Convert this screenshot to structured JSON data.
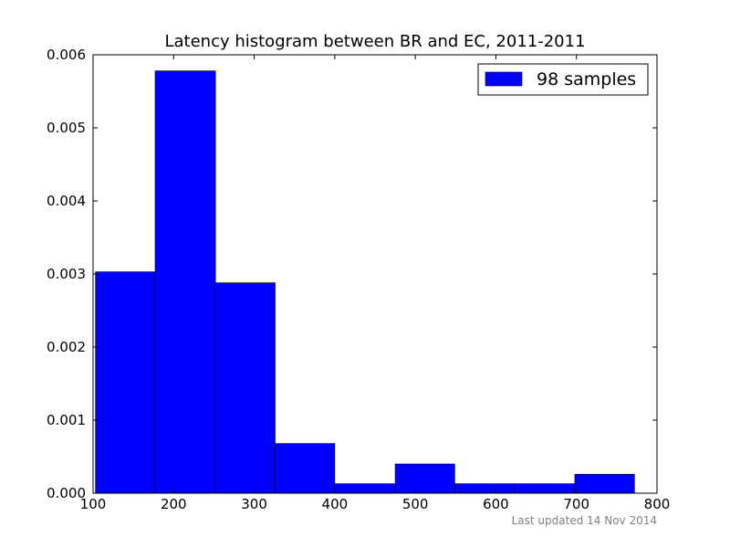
{
  "chart_data": {
    "type": "bar",
    "title": "Latency histogram between BR and EC, 2011-2011",
    "xlabel": "",
    "ylabel": "",
    "xlim": [
      100,
      800
    ],
    "ylim": [
      0,
      0.006
    ],
    "x_ticks": [
      "100",
      "200",
      "300",
      "400",
      "500",
      "600",
      "700",
      "800"
    ],
    "y_ticks": [
      "0.000",
      "0.001",
      "0.002",
      "0.003",
      "0.004",
      "0.005",
      "0.006"
    ],
    "bins": [
      {
        "start": 103,
        "end": 177,
        "value": 0.00303
      },
      {
        "start": 177,
        "end": 252,
        "value": 0.00578
      },
      {
        "start": 252,
        "end": 326,
        "value": 0.00288
      },
      {
        "start": 326,
        "end": 400,
        "value": 0.00068
      },
      {
        "start": 400,
        "end": 475,
        "value": 0.00013
      },
      {
        "start": 475,
        "end": 549,
        "value": 0.0004
      },
      {
        "start": 549,
        "end": 623,
        "value": 0.00013
      },
      {
        "start": 623,
        "end": 698,
        "value": 0.00013
      },
      {
        "start": 698,
        "end": 772,
        "value": 0.00026
      }
    ],
    "series": [
      {
        "name": "98 samples",
        "color": "#0000ff"
      }
    ],
    "grid": false,
    "legend_position": "top-right"
  },
  "footer": {
    "note": "Last updated 14 Nov 2014"
  }
}
